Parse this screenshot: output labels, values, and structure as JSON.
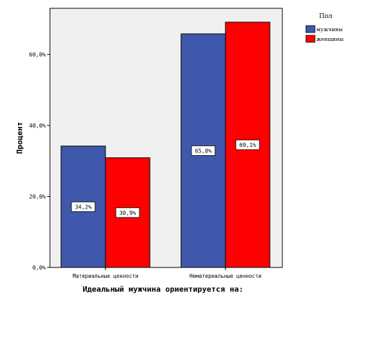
{
  "chart_data": {
    "type": "bar",
    "categories": [
      "Материальные ценности",
      "Нематериальные ценности"
    ],
    "series": [
      {
        "name": "мужчины",
        "values": [
          34.2,
          65.8
        ],
        "labels": [
          "34,2%",
          "65,8%"
        ],
        "color": "#3f58ab"
      },
      {
        "name": "женщины",
        "values": [
          30.9,
          69.1
        ],
        "labels": [
          "30,9%",
          "69,1%"
        ],
        "color": "#ff0000"
      }
    ],
    "xlabel": "Идеальный мужчина ориентируется на:",
    "ylabel": "Процент",
    "ylim": [
      0,
      73
    ],
    "yticks": [
      {
        "value": 0,
        "label": "0,0%"
      },
      {
        "value": 20,
        "label": "20,0%"
      },
      {
        "value": 40,
        "label": "40,0%"
      },
      {
        "value": 60,
        "label": "60,0%"
      }
    ],
    "legend": {
      "title": "Пол",
      "position": "top-right"
    },
    "plot_background": "#f0f0f0",
    "grid": false
  }
}
